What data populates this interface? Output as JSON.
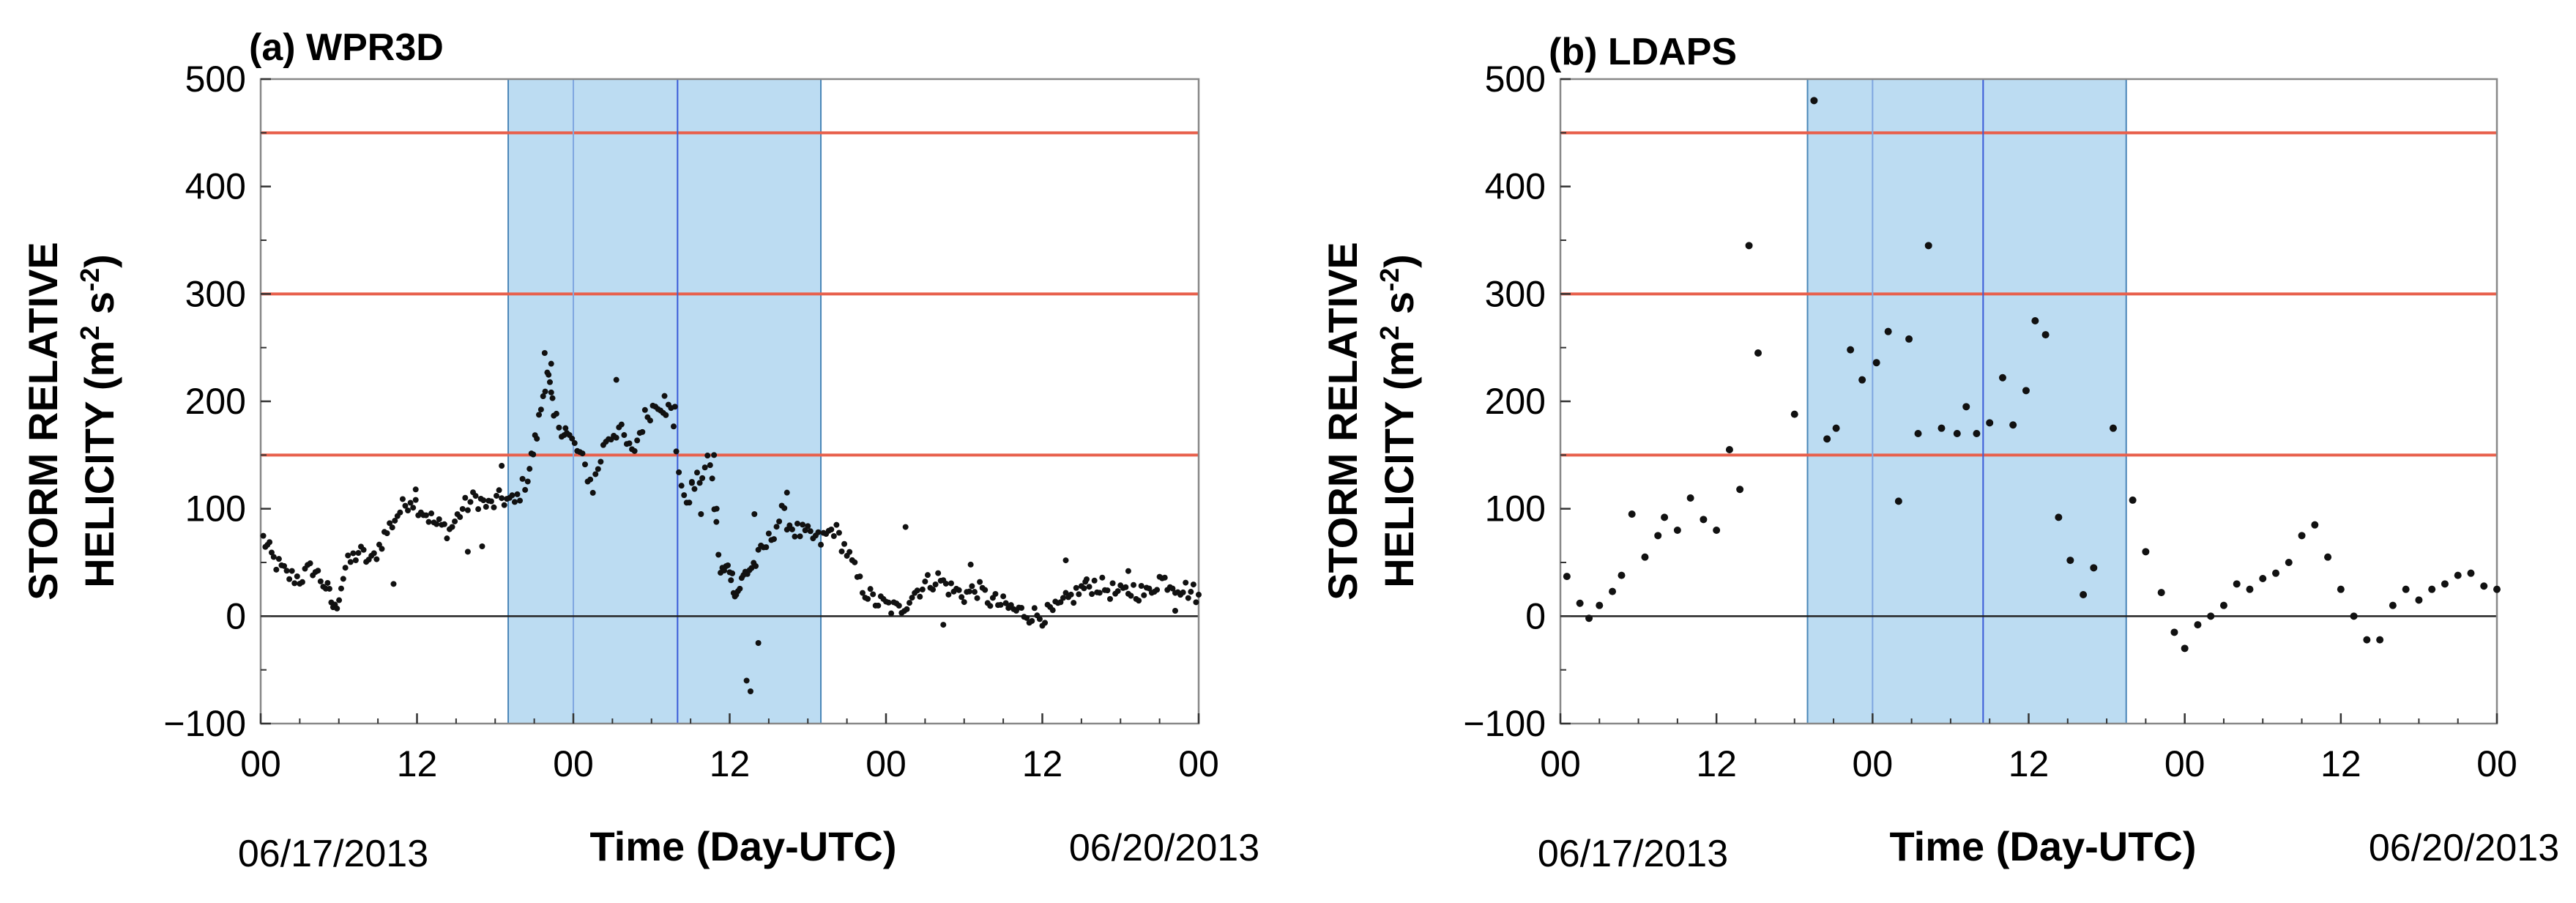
{
  "chart_data": [
    {
      "type": "scatter",
      "title": "(a) WPR3D",
      "ylabel_line1": "STORM RELATIVE",
      "ylabel_line2": "HELICITY (m",
      "ylabel_sup1": "2",
      "ylabel_mid": " s",
      "ylabel_sup2": "-2",
      "ylabel_end": ")",
      "xlabel": "Time (Day-UTC)",
      "x_unit": "hours since 06/17/2013 00 UTC",
      "xlim": [
        0,
        72
      ],
      "ylim": [
        -100,
        500
      ],
      "xticks": [
        {
          "value": 0,
          "label": "00"
        },
        {
          "value": 12,
          "label": "12"
        },
        {
          "value": 24,
          "label": "00"
        },
        {
          "value": 36,
          "label": "12"
        },
        {
          "value": 48,
          "label": "00"
        },
        {
          "value": 60,
          "label": "12"
        },
        {
          "value": 72,
          "label": "00"
        }
      ],
      "yticks": [
        {
          "value": -100,
          "label": "−100"
        },
        {
          "value": 0,
          "label": "0"
        },
        {
          "value": 100,
          "label": "100"
        },
        {
          "value": 200,
          "label": "200"
        },
        {
          "value": 300,
          "label": "300"
        },
        {
          "value": 400,
          "label": "400"
        },
        {
          "value": 500,
          "label": "500"
        }
      ],
      "date_start": "06/17/2013",
      "date_end": "06/20/2013",
      "threshold_lines": [
        150,
        300,
        450
      ],
      "threshold_color": "#e8604c",
      "zero_line": 0,
      "shaded_period": [
        19,
        43
      ],
      "shade_color": "#bcdcf2",
      "inner_vlines": [
        24,
        32
      ],
      "series_anchors": [
        [
          0.2,
          72
        ],
        [
          1,
          52
        ],
        [
          2,
          38
        ],
        [
          3,
          35
        ],
        [
          4,
          45
        ],
        [
          5,
          28
        ],
        [
          5.7,
          5
        ],
        [
          6.5,
          45
        ],
        [
          7.5,
          60
        ],
        [
          8.5,
          50
        ],
        [
          9.5,
          75
        ],
        [
          10.5,
          95
        ],
        [
          11.5,
          110
        ],
        [
          12.5,
          98
        ],
        [
          13.5,
          85
        ],
        [
          14.5,
          80
        ],
        [
          15.5,
          100
        ],
        [
          16.5,
          110
        ],
        [
          17.5,
          102
        ],
        [
          18.5,
          110
        ],
        [
          19.5,
          105
        ],
        [
          20.5,
          130
        ],
        [
          21.2,
          170
        ],
        [
          22,
          230
        ],
        [
          22.5,
          185
        ],
        [
          23.5,
          170
        ],
        [
          24.5,
          150
        ],
        [
          25.5,
          120
        ],
        [
          26.5,
          165
        ],
        [
          27.5,
          175
        ],
        [
          28.5,
          150
        ],
        [
          29.5,
          185
        ],
        [
          30.5,
          200
        ],
        [
          31.5,
          190
        ],
        [
          32.5,
          105
        ],
        [
          33.5,
          125
        ],
        [
          34.5,
          145
        ],
        [
          35.3,
          40
        ],
        [
          36,
          45
        ],
        [
          36.5,
          20
        ],
        [
          37.2,
          40
        ],
        [
          38,
          50
        ],
        [
          39,
          70
        ],
        [
          40,
          95
        ],
        [
          41,
          80
        ],
        [
          42,
          75
        ],
        [
          43,
          70
        ],
        [
          44,
          82
        ],
        [
          45,
          60
        ],
        [
          46,
          30
        ],
        [
          47,
          15
        ],
        [
          48,
          10
        ],
        [
          49,
          5
        ],
        [
          50,
          20
        ],
        [
          51,
          30
        ],
        [
          52,
          35
        ],
        [
          53,
          25
        ],
        [
          54,
          20
        ],
        [
          55,
          25
        ],
        [
          56,
          15
        ],
        [
          57,
          10
        ],
        [
          58,
          5
        ],
        [
          59,
          2
        ],
        [
          60,
          0
        ],
        [
          61,
          5
        ],
        [
          62,
          15
        ],
        [
          63,
          25
        ],
        [
          64,
          30
        ],
        [
          65,
          25
        ],
        [
          66,
          20
        ],
        [
          67,
          25
        ],
        [
          68,
          20
        ],
        [
          69,
          35
        ],
        [
          70,
          30
        ],
        [
          71,
          25
        ],
        [
          72,
          20
        ]
      ],
      "series_outliers": [
        [
          21.8,
          245
        ],
        [
          22.3,
          235
        ],
        [
          23.4,
          175
        ],
        [
          27.3,
          220
        ],
        [
          31.0,
          205
        ],
        [
          31.8,
          195
        ],
        [
          33.1,
          125
        ],
        [
          33.8,
          95
        ],
        [
          34.8,
          150
        ],
        [
          35.0,
          100
        ],
        [
          37.3,
          -60
        ],
        [
          37.6,
          -70
        ],
        [
          38.2,
          -25
        ],
        [
          37.9,
          95
        ],
        [
          40.4,
          115
        ],
        [
          49.5,
          83
        ],
        [
          52.4,
          -8
        ],
        [
          54.5,
          48
        ],
        [
          57.2,
          12
        ],
        [
          61.8,
          52
        ],
        [
          63.3,
          32
        ],
        [
          66.6,
          42
        ],
        [
          70.2,
          5
        ],
        [
          11.9,
          118
        ],
        [
          10.2,
          30
        ],
        [
          17.0,
          65
        ],
        [
          18.5,
          140
        ],
        [
          15.9,
          60
        ]
      ]
    },
    {
      "type": "scatter",
      "title": "(b) LDAPS",
      "ylabel_line1": "STORM RELATIVE",
      "ylabel_line2": "HELICITY (m",
      "ylabel_sup1": "2",
      "ylabel_mid": " s",
      "ylabel_sup2": "-2",
      "ylabel_end": ")",
      "xlabel": "Time (Day-UTC)",
      "x_unit": "hours since 06/17/2013 00 UTC",
      "xlim": [
        0,
        72
      ],
      "ylim": [
        -100,
        500
      ],
      "xticks": [
        {
          "value": 0,
          "label": "00"
        },
        {
          "value": 12,
          "label": "12"
        },
        {
          "value": 24,
          "label": "00"
        },
        {
          "value": 36,
          "label": "12"
        },
        {
          "value": 48,
          "label": "00"
        },
        {
          "value": 60,
          "label": "12"
        },
        {
          "value": 72,
          "label": "00"
        }
      ],
      "yticks": [
        {
          "value": -100,
          "label": "−100"
        },
        {
          "value": 0,
          "label": "0"
        },
        {
          "value": 100,
          "label": "100"
        },
        {
          "value": 200,
          "label": "200"
        },
        {
          "value": 300,
          "label": "300"
        },
        {
          "value": 400,
          "label": "400"
        },
        {
          "value": 500,
          "label": "500"
        }
      ],
      "date_start": "06/17/2013",
      "date_end": "06/20/2013",
      "threshold_lines": [
        150,
        300,
        450
      ],
      "threshold_color": "#e8604c",
      "zero_line": 0,
      "shaded_period": [
        19,
        43.5
      ],
      "shade_color": "#bcdcf2",
      "inner_vlines": [
        24,
        32.5
      ],
      "points": [
        [
          0.5,
          37
        ],
        [
          1.5,
          12
        ],
        [
          2.2,
          -2
        ],
        [
          3,
          10
        ],
        [
          4,
          23
        ],
        [
          4.7,
          38
        ],
        [
          5.5,
          95
        ],
        [
          6.5,
          55
        ],
        [
          7.5,
          75
        ],
        [
          8,
          92
        ],
        [
          9,
          80
        ],
        [
          10,
          110
        ],
        [
          11,
          90
        ],
        [
          12,
          80
        ],
        [
          13,
          155
        ],
        [
          13.8,
          118
        ],
        [
          14.5,
          345
        ],
        [
          15.2,
          245
        ],
        [
          18,
          188
        ],
        [
          19.5,
          480
        ],
        [
          20.5,
          165
        ],
        [
          21.2,
          175
        ],
        [
          22.3,
          248
        ],
        [
          23.2,
          220
        ],
        [
          24.3,
          236
        ],
        [
          25.2,
          265
        ],
        [
          26,
          107
        ],
        [
          26.8,
          258
        ],
        [
          27.5,
          170
        ],
        [
          28.3,
          345
        ],
        [
          29.3,
          175
        ],
        [
          30.5,
          170
        ],
        [
          31.2,
          195
        ],
        [
          32,
          170
        ],
        [
          33,
          180
        ],
        [
          34,
          222
        ],
        [
          34.8,
          178
        ],
        [
          35.8,
          210
        ],
        [
          36.5,
          275
        ],
        [
          37.3,
          262
        ],
        [
          38.3,
          92
        ],
        [
          39.2,
          52
        ],
        [
          40.2,
          20
        ],
        [
          41,
          45
        ],
        [
          42.5,
          175
        ],
        [
          44,
          108
        ],
        [
          45,
          60
        ],
        [
          46.2,
          22
        ],
        [
          47.2,
          -15
        ],
        [
          48,
          -30
        ],
        [
          49,
          -8
        ],
        [
          50,
          0
        ],
        [
          51,
          10
        ],
        [
          52,
          30
        ],
        [
          53,
          25
        ],
        [
          54,
          35
        ],
        [
          55,
          40
        ],
        [
          56,
          50
        ],
        [
          57,
          75
        ],
        [
          58,
          85
        ],
        [
          59,
          55
        ],
        [
          60,
          25
        ],
        [
          61,
          0
        ],
        [
          62,
          -22
        ],
        [
          63,
          -22
        ],
        [
          64,
          10
        ],
        [
          65,
          25
        ],
        [
          66,
          15
        ],
        [
          67,
          25
        ],
        [
          68,
          30
        ],
        [
          69,
          38
        ],
        [
          70,
          40
        ],
        [
          71,
          28
        ],
        [
          72,
          25
        ]
      ]
    }
  ]
}
